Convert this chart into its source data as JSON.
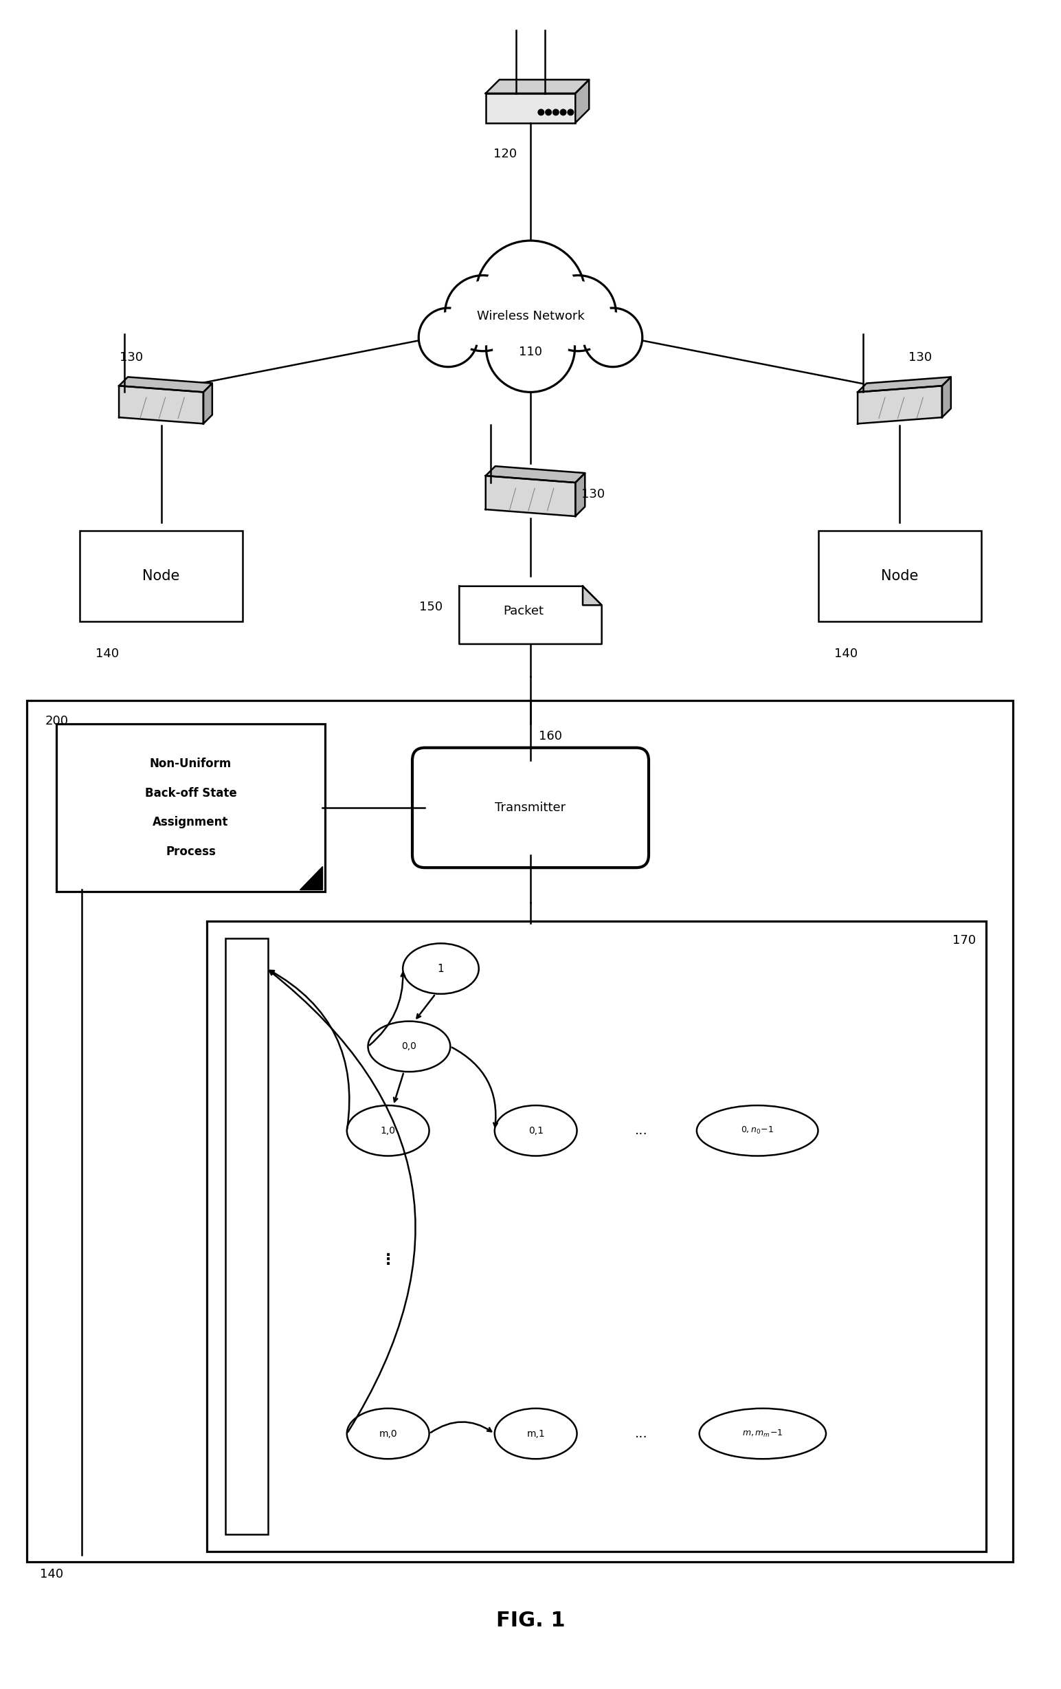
{
  "title": "FIG. 1",
  "bg_color": "#ffffff",
  "fig_width": 15.44,
  "fig_height": 24.57,
  "labels": {
    "wireless_network_line1": "Wireless Network",
    "wireless_network_line2": "110",
    "node": "Node",
    "packet": "Packet",
    "transmitter": "Transmitter",
    "nu_line1": "Non-Uniform",
    "nu_line2": "Back-off State",
    "nu_line3": "Assignment",
    "nu_line4": "Process",
    "lbl_120": "120",
    "lbl_130": "130",
    "lbl_140": "140",
    "lbl_150": "150",
    "lbl_160": "160",
    "lbl_170": "170",
    "lbl_200": "200",
    "state_1": "1",
    "state_00": "0,0",
    "state_10": "1,0",
    "state_01": "0,1",
    "state_0n": "0,n0-1",
    "state_m0": "m,0",
    "state_m1": "m,1",
    "state_mn": "m,mm-1",
    "dots": "...",
    "dots_vert": "⋮"
  },
  "cloud_circles": [
    [
      5.0,
      13.22,
      0.52
    ],
    [
      4.55,
      13.05,
      0.36
    ],
    [
      5.45,
      13.05,
      0.36
    ],
    [
      4.22,
      12.82,
      0.28
    ],
    [
      5.78,
      12.82,
      0.28
    ],
    [
      5.0,
      12.72,
      0.42
    ]
  ]
}
